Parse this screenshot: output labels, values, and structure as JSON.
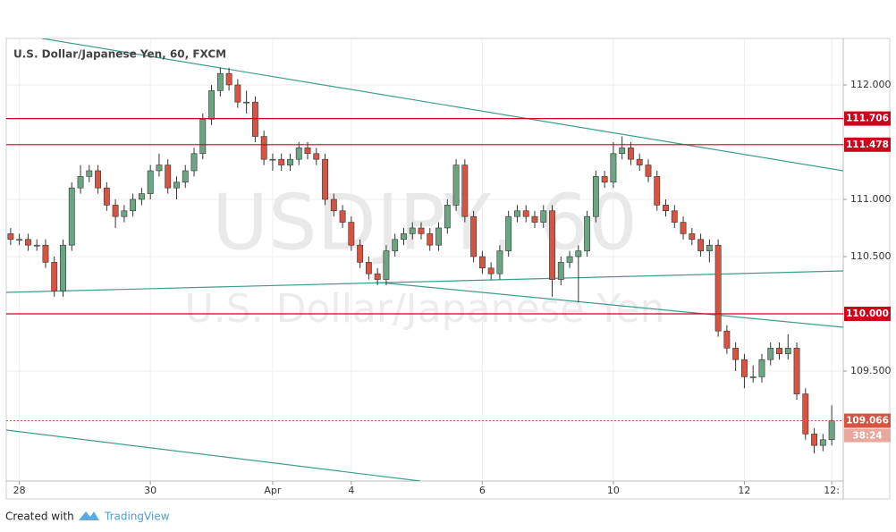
{
  "chart_data": {
    "type": "candlestick",
    "title": "U.S. Dollar/Japanese Yen, 60, FXCM",
    "watermark": "USDJPY, 60",
    "watermark_subtitle": "U.S. Dollar/Japanese Yen",
    "categories": [
      null,
      "28",
      null,
      null,
      null,
      null,
      null,
      null,
      null,
      null,
      null,
      null,
      null,
      null,
      null,
      null,
      "30",
      null,
      null,
      null,
      null,
      null,
      null,
      null,
      null,
      null,
      null,
      null,
      null,
      null,
      "Apr",
      null,
      null,
      null,
      null,
      null,
      null,
      null,
      null,
      "4",
      null,
      null,
      null,
      null,
      null,
      null,
      null,
      null,
      null,
      null,
      null,
      null,
      null,
      null,
      "6",
      null,
      null,
      null,
      null,
      null,
      null,
      null,
      null,
      null,
      null,
      null,
      null,
      null,
      null,
      "10",
      null,
      null,
      null,
      null,
      null,
      null,
      null,
      null,
      null,
      null,
      null,
      null,
      null,
      null,
      "12",
      null,
      null,
      null,
      null,
      null,
      null,
      null,
      null,
      null,
      "12:"
    ],
    "open": [
      110.7,
      110.65,
      110.65,
      110.6,
      110.6,
      110.45,
      110.2,
      110.6,
      111.1,
      111.2,
      111.25,
      111.1,
      110.95,
      110.85,
      110.9,
      111.0,
      111.05,
      111.25,
      111.3,
      111.1,
      111.15,
      111.25,
      111.4,
      111.7,
      111.95,
      112.1,
      112.0,
      111.85,
      111.85,
      111.55,
      111.35,
      111.35,
      111.3,
      111.35,
      111.45,
      111.4,
      111.35,
      111.0,
      110.9,
      110.8,
      110.6,
      110.45,
      110.35,
      110.3,
      110.55,
      110.65,
      110.7,
      110.75,
      110.7,
      110.6,
      110.75,
      110.95,
      111.3,
      110.85,
      110.5,
      110.4,
      110.35,
      110.55,
      110.85,
      110.9,
      110.85,
      110.8,
      110.9,
      110.3,
      110.45,
      110.5,
      110.55,
      110.85,
      111.2,
      111.15,
      111.4,
      111.45,
      111.35,
      111.3,
      111.2,
      110.95,
      110.9,
      110.8,
      110.7,
      110.65,
      110.55,
      110.6,
      109.85,
      109.7,
      109.6,
      109.45,
      109.45,
      109.6,
      109.7,
      109.65,
      109.7,
      109.3,
      108.95,
      108.85,
      108.9
    ],
    "high": [
      110.75,
      110.7,
      110.7,
      110.65,
      110.65,
      110.5,
      110.65,
      111.15,
      111.3,
      111.3,
      111.3,
      111.15,
      111.0,
      110.95,
      111.05,
      111.1,
      111.3,
      111.4,
      111.35,
      111.2,
      111.3,
      111.45,
      111.75,
      112.0,
      112.15,
      112.15,
      112.05,
      111.95,
      111.9,
      111.6,
      111.4,
      111.4,
      111.4,
      111.5,
      111.5,
      111.45,
      111.4,
      111.05,
      110.95,
      110.85,
      110.65,
      110.5,
      110.4,
      110.6,
      110.7,
      110.75,
      110.8,
      110.8,
      110.75,
      110.8,
      111.0,
      111.35,
      111.35,
      110.9,
      110.55,
      110.45,
      110.6,
      110.9,
      110.95,
      110.95,
      110.9,
      110.95,
      110.95,
      110.5,
      110.55,
      110.6,
      110.9,
      111.25,
      111.25,
      111.5,
      111.55,
      111.5,
      111.4,
      111.35,
      111.25,
      111.0,
      110.95,
      110.85,
      110.75,
      110.7,
      110.65,
      110.65,
      109.9,
      109.75,
      109.65,
      109.55,
      109.65,
      109.75,
      109.75,
      109.82,
      109.75,
      109.35,
      109.0,
      108.95,
      109.2
    ],
    "low": [
      110.6,
      110.6,
      110.55,
      110.55,
      110.4,
      110.15,
      110.15,
      110.55,
      111.05,
      111.15,
      111.05,
      110.9,
      110.75,
      110.8,
      110.85,
      110.95,
      111.0,
      111.2,
      111.05,
      111.0,
      111.1,
      111.2,
      111.35,
      111.65,
      111.9,
      111.95,
      111.8,
      111.75,
      111.5,
      111.3,
      111.25,
      111.25,
      111.25,
      111.3,
      111.35,
      111.3,
      110.95,
      110.85,
      110.75,
      110.55,
      110.4,
      110.3,
      110.25,
      110.25,
      110.5,
      110.6,
      110.65,
      110.65,
      110.55,
      110.55,
      110.7,
      110.9,
      110.8,
      110.45,
      110.35,
      110.3,
      110.3,
      110.5,
      110.8,
      110.8,
      110.75,
      110.75,
      110.15,
      110.25,
      110.4,
      110.1,
      110.5,
      110.8,
      111.1,
      111.1,
      111.35,
      111.3,
      111.25,
      111.15,
      110.9,
      110.85,
      110.75,
      110.65,
      110.6,
      110.5,
      110.45,
      109.8,
      109.65,
      109.5,
      109.35,
      109.4,
      109.4,
      109.55,
      109.6,
      109.6,
      109.25,
      108.9,
      108.78,
      108.8,
      108.85
    ],
    "close": [
      110.65,
      110.65,
      110.6,
      110.6,
      110.45,
      110.2,
      110.6,
      111.1,
      111.2,
      111.25,
      111.1,
      110.95,
      110.85,
      110.9,
      111.0,
      111.05,
      111.25,
      111.3,
      111.1,
      111.15,
      111.25,
      111.4,
      111.7,
      111.95,
      112.1,
      112.0,
      111.85,
      111.85,
      111.55,
      111.35,
      111.35,
      111.3,
      111.35,
      111.45,
      111.4,
      111.35,
      111.0,
      110.9,
      110.8,
      110.6,
      110.45,
      110.35,
      110.3,
      110.55,
      110.65,
      110.7,
      110.75,
      110.7,
      110.6,
      110.75,
      110.95,
      111.3,
      110.85,
      110.5,
      110.4,
      110.35,
      110.55,
      110.85,
      110.9,
      110.85,
      110.8,
      110.9,
      110.3,
      110.45,
      110.5,
      110.55,
      110.85,
      111.2,
      111.15,
      111.4,
      111.45,
      111.35,
      111.3,
      111.2,
      110.95,
      110.9,
      110.8,
      110.7,
      110.65,
      110.55,
      110.6,
      109.85,
      109.7,
      109.6,
      109.45,
      109.45,
      109.6,
      109.7,
      109.65,
      109.7,
      109.3,
      108.95,
      108.85,
      108.9,
      109.066
    ],
    "up_color": "#6ba583",
    "down_color": "#d75442",
    "wick_color": "#333333",
    "ylim": [
      108.539,
      112.406
    ],
    "yticks": [
      {
        "value": 112,
        "label": "112.000"
      },
      {
        "value": 111,
        "label": "111.000"
      },
      {
        "value": 110.5,
        "label": "110.500"
      },
      {
        "value": 109.5,
        "label": "109.500"
      }
    ],
    "levels": [
      {
        "value": 111.706,
        "label": "111.706"
      },
      {
        "value": 111.478,
        "label": "111.478"
      },
      {
        "value": 110,
        "label": "110.000"
      }
    ],
    "level_color": "#d0021b",
    "last_price": {
      "value": 109.066,
      "label": "109.066"
    },
    "countdown": "38:24",
    "grid": true,
    "footer": {
      "prefix": "Created with",
      "brand": "TradingView"
    }
  }
}
